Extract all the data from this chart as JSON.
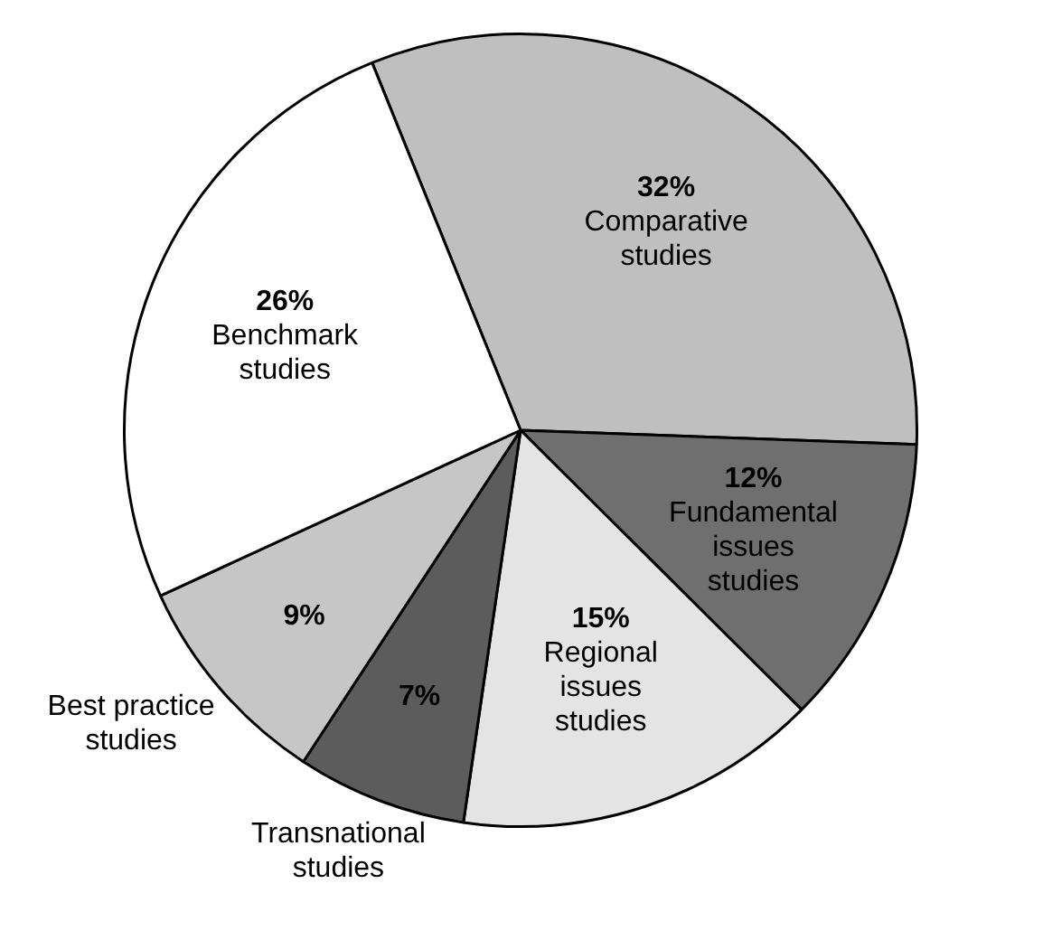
{
  "chart_data": {
    "type": "pie",
    "categories": [
      "Comparative studies",
      "Fundamental issues studies",
      "Regional issues studies",
      "Transnational studies",
      "Best practice studies",
      "Benchmark studies"
    ],
    "values": [
      32,
      12,
      15,
      7,
      9,
      26
    ],
    "value_labels": [
      "32%",
      "12%",
      "15%",
      "7%",
      "9%",
      "26%"
    ],
    "colors": [
      "#bfbfbf",
      "#6f6f6f",
      "#e4e4e4",
      "#5c5c5c",
      "#c6c6c6",
      "#ffffff"
    ],
    "legend": false
  }
}
